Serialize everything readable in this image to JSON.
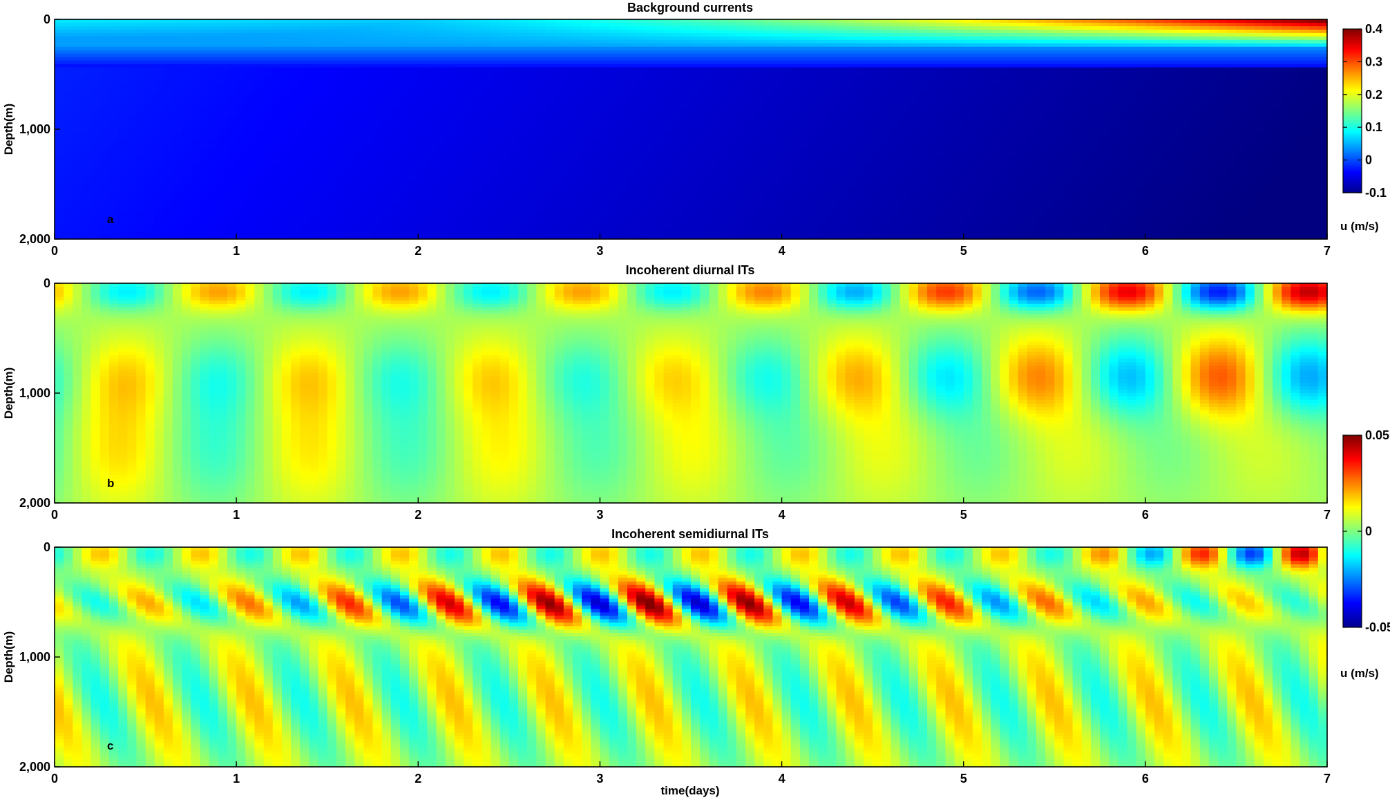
{
  "chart_data": {
    "type": "heatmap",
    "x_axis": {
      "label": "time(days)",
      "range": [
        0,
        7
      ],
      "ticks": [
        0,
        1,
        2,
        3,
        4,
        5,
        6,
        7
      ]
    },
    "y_axis": {
      "label": "Depth(m)",
      "range": [
        0,
        2000
      ],
      "inverted": true,
      "ticks": [
        0,
        1000,
        2000
      ],
      "tick_labels": [
        "0",
        "1,000",
        "2,000"
      ]
    },
    "colormap": "jet",
    "panels": [
      {
        "id": "a",
        "title": "Background currents",
        "panel_label": "a",
        "clim": [
          -0.1,
          0.4
        ],
        "colorbar": {
          "ticks": [
            0.4,
            0.3,
            0.2,
            0.1,
            0,
            -0.1
          ],
          "tick_labels": [
            "0.4",
            "0.3",
            "0.2",
            "0.1",
            "0",
            "-0.1"
          ],
          "label": "u (m/s)"
        },
        "description": "surface jet strengthens toward day 7 (up to ~0.4 m/s in top ~200 m); below ~400 m currents weaken from ~-0.02 to ~-0.1 m/s with time"
      },
      {
        "id": "b",
        "title": "Incoherent diurnal ITs",
        "panel_label": "b",
        "clim": [
          -0.05,
          0.05
        ],
        "description": "alternating surface-intensified anomalies with ~1 day period, strongest after day 5; weaker mid-depth cells near 800 m"
      },
      {
        "id": "c",
        "title": "Incoherent semidiurnal ITs",
        "panel_label": "c",
        "clim": [
          -0.05,
          0.05
        ],
        "colorbar": {
          "ticks": [
            0.05,
            0,
            -0.05
          ],
          "tick_labels": [
            "0.05",
            "0",
            "-0.05"
          ],
          "label": "u (m/s)"
        },
        "description": "~0.5 day period anomalies concentrated at 400–700 m, strongest between days 2 and 4.5; strong surface cells near day 6.5–7"
      }
    ]
  }
}
